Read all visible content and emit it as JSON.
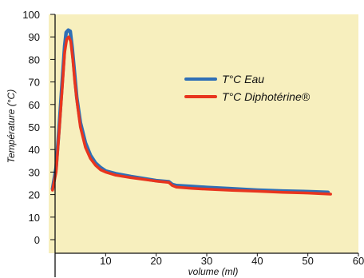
{
  "chart_data": {
    "type": "line",
    "xlabel": "volume (ml)",
    "ylabel": "Température (°C)",
    "xlim": [
      0,
      60
    ],
    "ylim": [
      0,
      100
    ],
    "x_ticks": [
      10,
      20,
      30,
      40,
      50,
      60
    ],
    "y_ticks": [
      0,
      10,
      20,
      30,
      40,
      50,
      60,
      70,
      80,
      90,
      100
    ],
    "grid": false,
    "legend_position": "top-right",
    "plot_background": "#f7efbe",
    "series": [
      {
        "name": "T°C Eau",
        "color": "#2f6fb6",
        "points": [
          [
            -0.5,
            22.5
          ],
          [
            0.2,
            32
          ],
          [
            0.8,
            50
          ],
          [
            1.4,
            70
          ],
          [
            1.9,
            86
          ],
          [
            2.2,
            92
          ],
          [
            2.6,
            93
          ],
          [
            3.0,
            92.5
          ],
          [
            3.4,
            85
          ],
          [
            3.8,
            75
          ],
          [
            4.3,
            63
          ],
          [
            5.0,
            52
          ],
          [
            6.0,
            43
          ],
          [
            7.0,
            37.5
          ],
          [
            8.0,
            34
          ],
          [
            9.0,
            32
          ],
          [
            10.0,
            30.5
          ],
          [
            12.0,
            29.3
          ],
          [
            15.0,
            28
          ],
          [
            20.0,
            26.2
          ],
          [
            22.5,
            25.7
          ],
          [
            23.2,
            24.5
          ],
          [
            24.0,
            24
          ],
          [
            27.0,
            23.6
          ],
          [
            30.0,
            23.2
          ],
          [
            35.0,
            22.6
          ],
          [
            40.0,
            22
          ],
          [
            45.0,
            21.6
          ],
          [
            50.0,
            21.3
          ],
          [
            54.0,
            21
          ]
        ]
      },
      {
        "name": "T°C Diphotérine®",
        "color": "#e8351e",
        "points": [
          [
            -0.5,
            22
          ],
          [
            0.2,
            30
          ],
          [
            0.8,
            48
          ],
          [
            1.4,
            67
          ],
          [
            1.9,
            83
          ],
          [
            2.3,
            89
          ],
          [
            2.7,
            90
          ],
          [
            3.1,
            88
          ],
          [
            3.5,
            80
          ],
          [
            3.9,
            70
          ],
          [
            4.4,
            60
          ],
          [
            5.0,
            50
          ],
          [
            6.0,
            41
          ],
          [
            7.0,
            36
          ],
          [
            8.0,
            33
          ],
          [
            9.0,
            31
          ],
          [
            10.0,
            30
          ],
          [
            12.0,
            28.6
          ],
          [
            15.0,
            27.5
          ],
          [
            20.0,
            26
          ],
          [
            22.5,
            25.4
          ],
          [
            23.2,
            24
          ],
          [
            24.0,
            23.3
          ],
          [
            27.0,
            22.8
          ],
          [
            30.0,
            22.4
          ],
          [
            35.0,
            21.9
          ],
          [
            40.0,
            21.5
          ],
          [
            45.0,
            21
          ],
          [
            50.0,
            20.7
          ],
          [
            54.5,
            20.2
          ]
        ]
      }
    ]
  }
}
